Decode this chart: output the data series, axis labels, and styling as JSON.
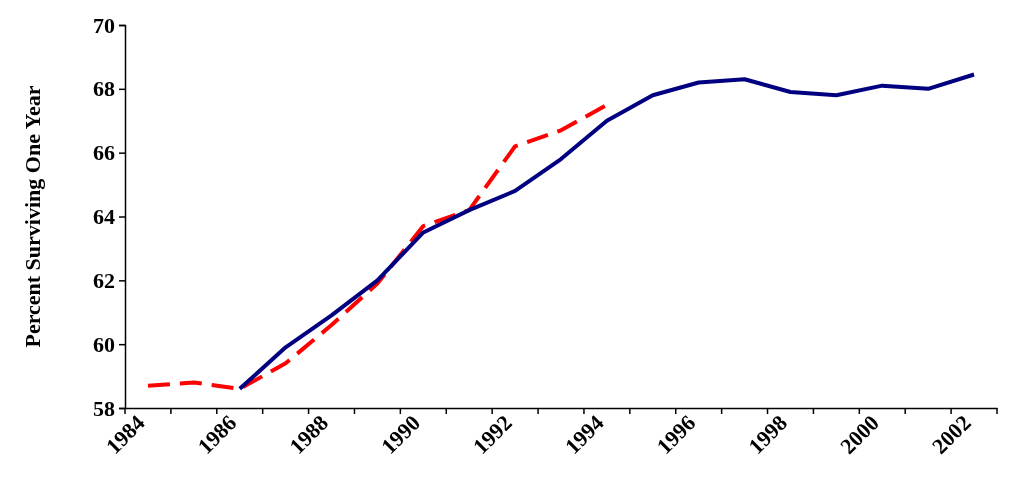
{
  "chart_data": {
    "type": "line",
    "ylabel": "Percent Surviving One Year",
    "categories": [
      "1984",
      null,
      "1986",
      null,
      "1988",
      null,
      "1990",
      null,
      "1992",
      null,
      "1994",
      null,
      "1996",
      null,
      "1998",
      null,
      "2000",
      null,
      "2002"
    ],
    "series": [
      {
        "color": "#ff0000",
        "line_style": "dashed",
        "values": [
          58.7,
          58.8,
          58.6,
          59.4,
          60.6,
          61.9,
          63.7,
          64.2,
          66.2,
          66.7,
          67.5,
          null,
          null,
          null,
          null,
          null,
          null,
          null,
          null
        ]
      },
      {
        "color": "#000080",
        "line_style": "solid",
        "values": [
          null,
          null,
          58.6,
          59.9,
          60.9,
          62.0,
          63.5,
          64.2,
          64.8,
          65.8,
          67.0,
          67.8,
          68.2,
          68.3,
          67.9,
          67.8,
          68.1,
          68.0,
          68.45
        ]
      }
    ],
    "ylim": [
      58,
      70
    ],
    "yticks": [
      58,
      60,
      62,
      64,
      66,
      68,
      70
    ],
    "grid": false,
    "marker": "none"
  }
}
